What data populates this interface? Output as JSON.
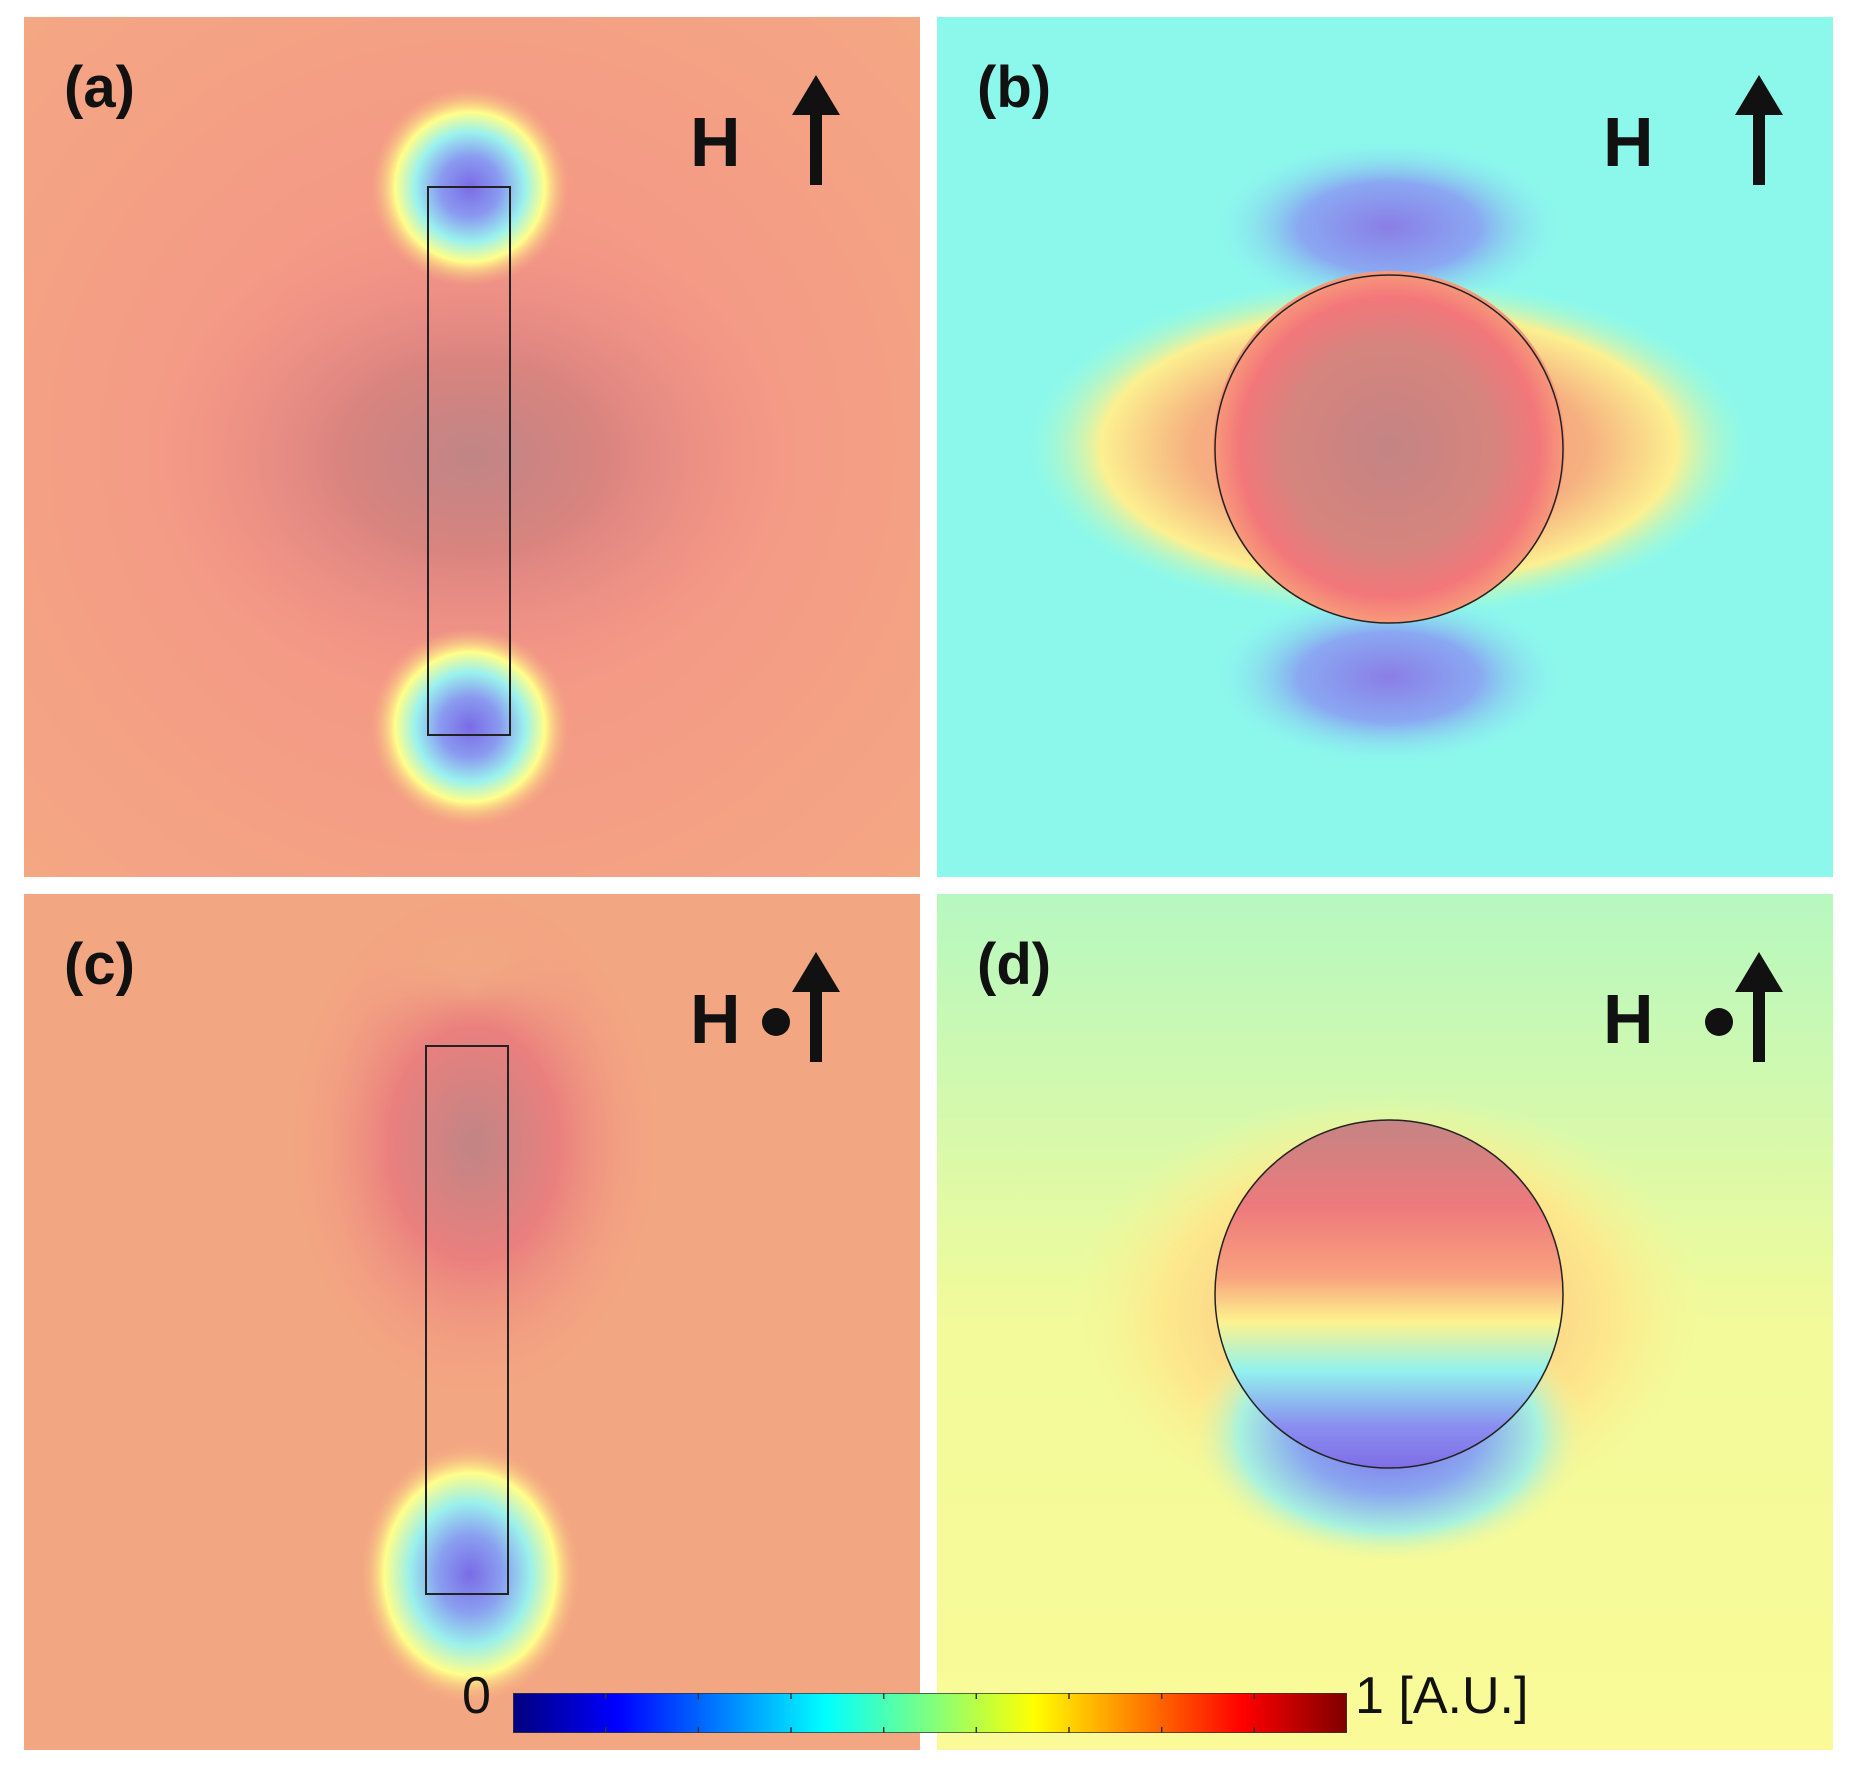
{
  "panels": [
    {
      "id": "a",
      "label": "(a)",
      "field": "H",
      "has_dot": false
    },
    {
      "id": "b",
      "label": "(b)",
      "field": "H",
      "has_dot": false
    },
    {
      "id": "c",
      "label": "(c)",
      "field": "H",
      "has_dot": true
    },
    {
      "id": "d",
      "label": "(d)",
      "field": "H",
      "has_dot": true
    }
  ],
  "colorbar": {
    "min_label": "0",
    "max_label": "1 [A.U.]",
    "colors": [
      "#00007f",
      "#0000ff",
      "#007fff",
      "#00ffff",
      "#7fff7f",
      "#ffff00",
      "#ff7f00",
      "#ff0000",
      "#7f0000"
    ]
  }
}
